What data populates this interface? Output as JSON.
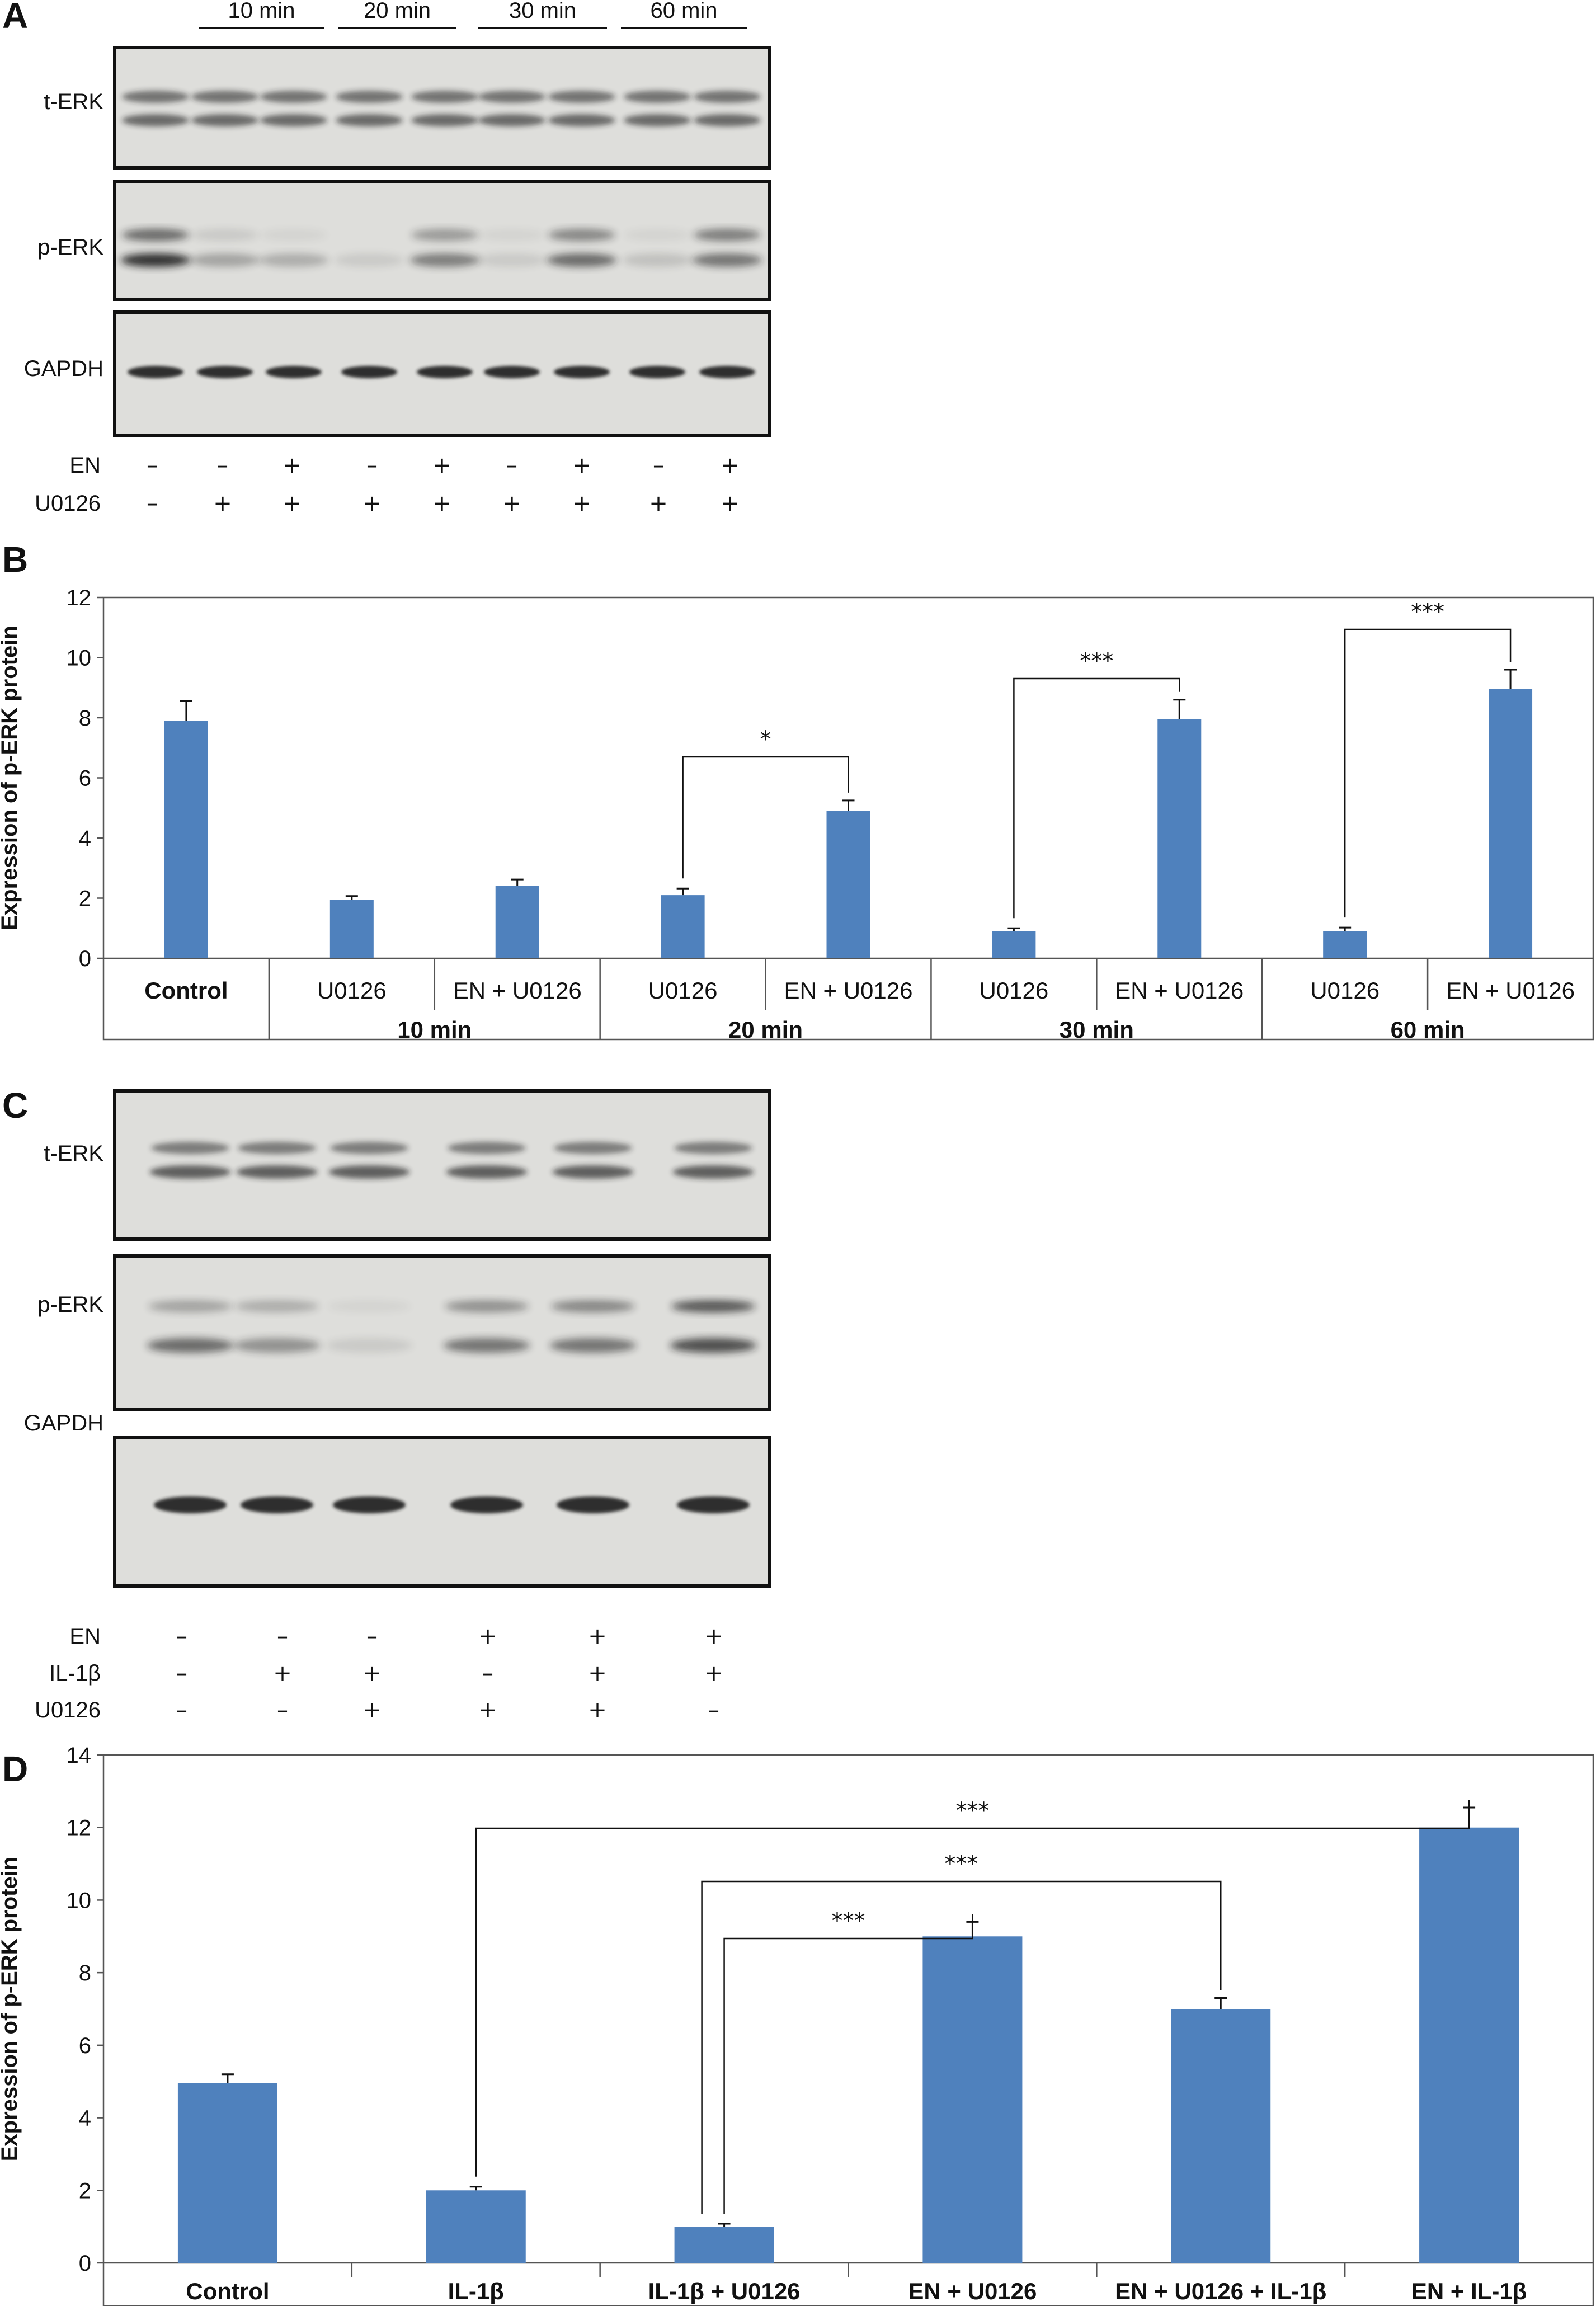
{
  "panelA": {
    "label": "A",
    "times": [
      "10 min",
      "20 min",
      "30 min",
      "60 min"
    ],
    "rows": [
      "t-ERK",
      "p-ERK",
      "GAPDH"
    ],
    "treat_rows": [
      {
        "name": "EN",
        "signs": [
          "–",
          "–",
          "+",
          "–",
          "+",
          "–",
          "+",
          "–",
          "+"
        ]
      },
      {
        "name": "U0126",
        "signs": [
          "–",
          "+",
          "+",
          "+",
          "+",
          "+",
          "+",
          "+",
          "+"
        ]
      }
    ]
  },
  "panelC": {
    "label": "C",
    "rows": [
      "t-ERK",
      "p-ERK",
      "GAPDH"
    ],
    "treat_rows": [
      {
        "name": "EN",
        "signs": [
          "–",
          "–",
          "–",
          "+",
          "+",
          "+"
        ]
      },
      {
        "name": "IL-1β",
        "signs": [
          "–",
          "+",
          "+",
          "–",
          "+",
          "+"
        ]
      },
      {
        "name": "U0126",
        "signs": [
          "–",
          "–",
          "+",
          "+",
          "+",
          "–"
        ]
      }
    ]
  },
  "panelB": {
    "label": "B",
    "group_labels": [
      "10 min",
      "20 min",
      "30 min",
      "60 min"
    ]
  },
  "panelD": {
    "label": "D"
  },
  "chart_data": [
    {
      "type": "bar",
      "ylabel": "Expression of p-ERK protein",
      "ylim": [
        0,
        12
      ],
      "yticks": [
        0,
        2,
        4,
        6,
        8,
        10,
        12
      ],
      "categories": [
        "Control",
        "U0126",
        "EN + U0126",
        "U0126",
        "EN + U0126",
        "U0126",
        "EN + U0126",
        "U0126",
        "EN + U0126"
      ],
      "groups": [
        "",
        "10 min",
        "10 min",
        "20 min",
        "20 min",
        "30 min",
        "30 min",
        "60 min",
        "60 min"
      ],
      "values": [
        7.9,
        1.95,
        2.4,
        2.1,
        4.9,
        0.9,
        7.95,
        0.9,
        8.95
      ],
      "errors": [
        0.65,
        0.12,
        0.22,
        0.22,
        0.35,
        0.1,
        0.65,
        0.12,
        0.65
      ],
      "color": "#4f81bd",
      "significance": [
        {
          "from": 3,
          "to": 4,
          "label": "*"
        },
        {
          "from": 5,
          "to": 6,
          "label": "***"
        },
        {
          "from": 7,
          "to": 8,
          "label": "***"
        }
      ]
    },
    {
      "type": "bar",
      "ylabel": "Expression of p-ERK protein",
      "ylim": [
        0,
        14
      ],
      "yticks": [
        0,
        2,
        4,
        6,
        8,
        10,
        12,
        14
      ],
      "categories": [
        "Control",
        "IL-1β",
        "IL-1β + U0126",
        "EN + U0126",
        "EN + U0126 + IL-1β",
        "EN + IL-1β"
      ],
      "values": [
        4.95,
        2.0,
        1.0,
        9.0,
        7.0,
        12.0
      ],
      "errors": [
        0.25,
        0.1,
        0.08,
        0.4,
        0.3,
        0.55
      ],
      "color": "#4f81bd",
      "significance": [
        {
          "from": 1,
          "to": 5,
          "label": "***"
        },
        {
          "from": 2,
          "to": 4,
          "label": "***"
        },
        {
          "from": 2,
          "to": 3,
          "label": "***"
        }
      ]
    }
  ]
}
